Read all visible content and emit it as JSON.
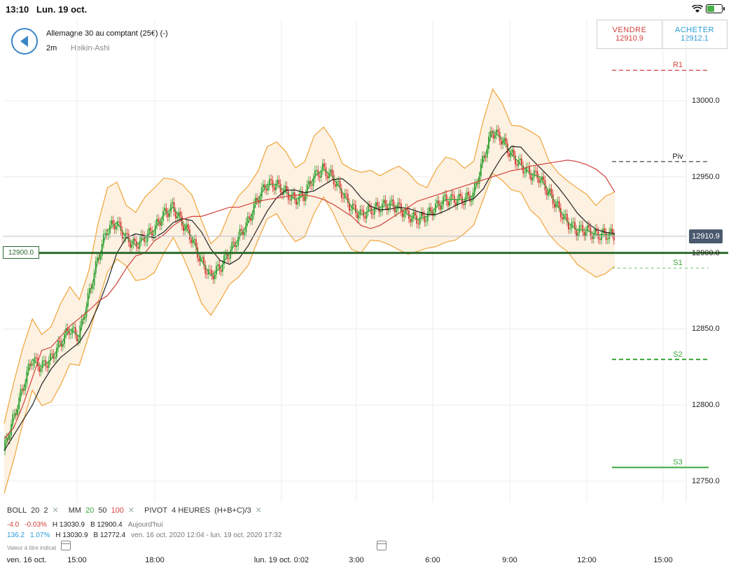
{
  "status": {
    "time": "13:10",
    "date": "Lun. 19 oct.",
    "battery_level": 0.55
  },
  "header": {
    "back_icon": "back-arrow-icon",
    "instrument": "Allemagne 30 au comptant (25€) (-)",
    "timeframe": "2m",
    "chart_type": "Heikin-Ashi"
  },
  "trade": {
    "sell_label": "VENDRE",
    "sell_price": "12910.9",
    "buy_label": "ACHETER",
    "buy_price": "12912.1"
  },
  "chart": {
    "current_price_tag": "12910.9",
    "horizontal_line_tag": "12900.0",
    "y_ticks": [
      "13000.0",
      "12950.0",
      "12900.0",
      "12850.0",
      "12800.0",
      "12750.0"
    ],
    "x_ticks": [
      "ven. 16 oct.",
      "15:00",
      "18:00",
      "lun. 19 oct. 0:02",
      "3:00",
      "6:00",
      "9:00",
      "12:00",
      "15:00"
    ],
    "pivots": {
      "R1": "R1",
      "Piv": "Piv",
      "S1": "S1",
      "S2": "S2",
      "S3": "S3"
    }
  },
  "chart_data": {
    "type": "line",
    "ylim": [
      12725,
      13050
    ],
    "y_ticks": [
      13000,
      12950,
      12900,
      12850,
      12800,
      12750
    ],
    "current_price": 12910.9,
    "horizontal_line": 12900.0,
    "pivot_levels": {
      "R1": 13020,
      "Piv": 12960,
      "S1": 12890,
      "S2": 12830,
      "S3": 12759
    },
    "x_tick_labels": [
      "ven. 16 oct.",
      "15:00",
      "18:00",
      "lun. 19 oct. 0:02",
      "3:00",
      "6:00",
      "9:00",
      "12:00",
      "15:00"
    ],
    "series": [
      {
        "name": "",
        "values": [
          12778,
          12785,
          12800,
          12818,
          12836,
          12838,
          12845,
          12852,
          12857,
          12862,
          12868,
          12872,
          12880,
          12890,
          12898,
          12900,
          12908,
          12912,
          12918,
          12922,
          12924,
          12924,
          12926,
          12928,
          12930,
          12930,
          12932,
          12934,
          12935,
          12936,
          12937,
          12938,
          12938,
          12937,
          12935,
          12932,
          12928,
          12924,
          12918,
          12916,
          12918,
          12922,
          12926,
          12930,
          12934,
          12936,
          12938,
          12940,
          12942,
          12944,
          12946,
          12948,
          12950,
          12952,
          12954,
          12955,
          12957,
          12958,
          12959,
          12960,
          12961,
          12960,
          12958,
          12955,
          12950,
          12940
        ]
      },
      {
        "name": "",
        "values": [
          12770,
          12790,
          12810,
          12830,
          12825,
          12830,
          12840,
          12850,
          12845,
          12870,
          12895,
          12915,
          12920,
          12910,
          12905,
          12910,
          12915,
          12925,
          12930,
          12920,
          12910,
          12895,
          12885,
          12890,
          12900,
          12910,
          12920,
          12935,
          12945,
          12945,
          12940,
          12935,
          12938,
          12950,
          12955,
          12950,
          12940,
          12930,
          12925,
          12928,
          12930,
          12932,
          12930,
          12925,
          12922,
          12924,
          12930,
          12935,
          12935,
          12935,
          12938,
          12960,
          12980,
          12975,
          12965,
          12958,
          12952,
          12950,
          12940,
          12930,
          12920,
          12915,
          12915,
          12912,
          12912,
          12912
        ]
      }
    ],
    "bollinger": {
      "period": 20,
      "stddev": 2
    },
    "moving_averages": [
      20,
      50,
      100
    ]
  },
  "legend": {
    "boll_label": "BOLL",
    "boll_period": "20",
    "boll_dev": "2",
    "mm_label": "MM",
    "mm_20": "20",
    "mm_50": "50",
    "mm_100": "100",
    "pivot_label": "PIVOT",
    "pivot_period": "4 HEURES",
    "pivot_formula": "(H+B+C)/3",
    "close_symbol": "✕",
    "row1": {
      "change": "-4.0",
      "pct": "-0.03%",
      "high": "H 13030.9",
      "low": "B 12900.4",
      "period": "Aujourd'hui"
    },
    "row2": {
      "change": "136.2",
      "pct": "1.07%",
      "high": "H 13030.9",
      "low": "B 12772.4",
      "period": "ven. 16 oct. 2020 12:04 - lun. 19 oct. 2020 17:32"
    },
    "disclaimer": "Valeur à titre indicat"
  },
  "colors": {
    "bull": "#3aa63a",
    "bear": "#d2413b",
    "boll": "#f0a53a",
    "mm20": "#3aa63a",
    "mm50": "#222222",
    "mm100": "#d2413b",
    "hline": "#2e6b2e",
    "accent": "#3a85c8"
  }
}
